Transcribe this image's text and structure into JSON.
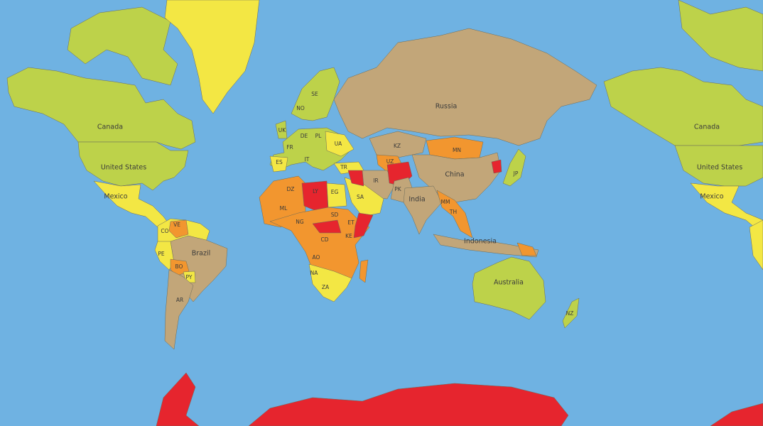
{
  "labels": [
    "Canada",
    "United States",
    "Mexico",
    "Russia",
    "China",
    "India",
    "Brazil",
    "Indonesia",
    "Australia",
    "NO",
    "SE",
    "UK",
    "DE",
    "PL",
    "FR",
    "UA",
    "ES",
    "IT",
    "TR",
    "KZ",
    "MN",
    "UZ",
    "IR",
    "PK",
    "JP",
    "SA",
    "EG",
    "DZ",
    "LY",
    "ML",
    "NG",
    "SD",
    "ET",
    "KE",
    "CD",
    "AO",
    "NA",
    "ZA",
    "VE",
    "CO",
    "PE",
    "BO",
    "PY",
    "AR",
    "MM",
    "TH",
    "NZ"
  ]
}
